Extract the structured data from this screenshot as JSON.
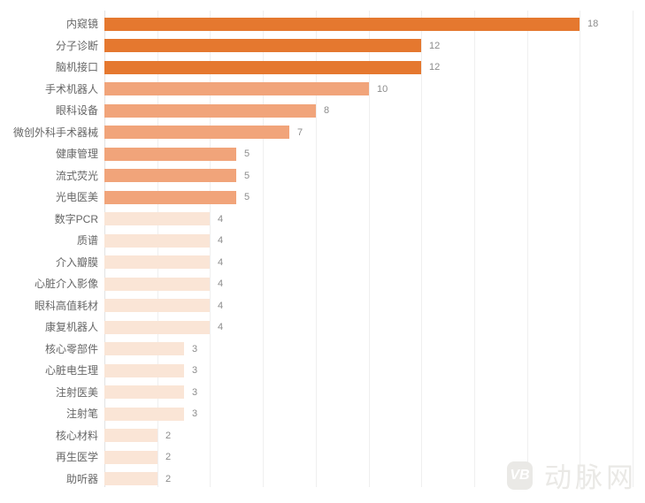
{
  "chart_data": {
    "type": "bar",
    "orientation": "horizontal",
    "title": "",
    "xlabel": "",
    "ylabel": "",
    "xlim": [
      0,
      20
    ],
    "grid_step": 2,
    "grid": true,
    "legend": false,
    "categories": [
      "内窥镜",
      "分子诊断",
      "脑机接口",
      "手术机器人",
      "眼科设备",
      "微创外科手术器械",
      "健康管理",
      "流式荧光",
      "光电医美",
      "数字PCR",
      "质谱",
      "介入瓣膜",
      "心脏介入影像",
      "眼科高值耗材",
      "康复机器人",
      "核心零部件",
      "心脏电生理",
      "注射医美",
      "注射笔",
      "核心材料",
      "再生医学",
      "助听器"
    ],
    "values": [
      18,
      12,
      12,
      10,
      8,
      7,
      5,
      5,
      5,
      4,
      4,
      4,
      4,
      4,
      4,
      3,
      3,
      3,
      3,
      2,
      2,
      2
    ],
    "bar_colors": [
      "#E5782F",
      "#E5782F",
      "#E5782F",
      "#F1A47A",
      "#F1A47A",
      "#F1A47A",
      "#F1A47A",
      "#F1A47A",
      "#F1A47A",
      "#FAE5D6",
      "#FAE5D6",
      "#FAE5D6",
      "#FAE5D6",
      "#FAE5D6",
      "#FAE5D6",
      "#FAE5D6",
      "#FAE5D6",
      "#FAE5D6",
      "#FAE5D6",
      "#FAE5D6",
      "#FAE5D6",
      "#FAE5D6"
    ],
    "palette": {
      "high_values_12_and_up": "#E5782F",
      "mid_values_5_to_10": "#F1A47A",
      "low_values_4_and_below": "#FAE5D6"
    }
  },
  "watermark": {
    "logo_text": "VB",
    "site_name": "动脉网"
  }
}
